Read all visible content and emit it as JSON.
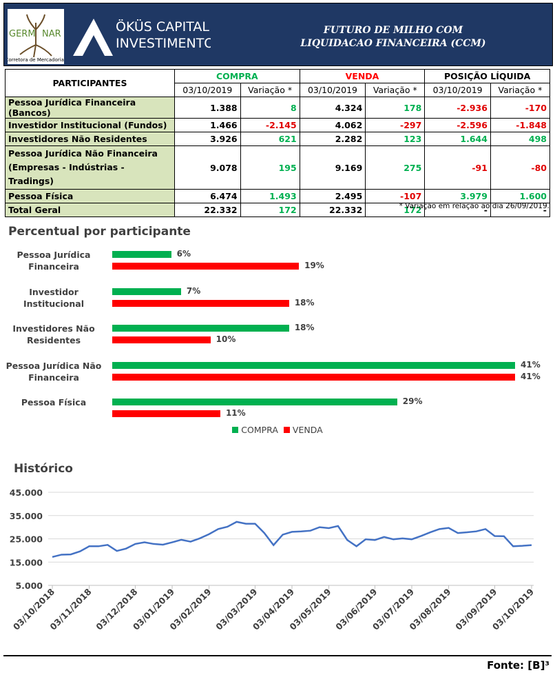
{
  "header": {
    "logo": {
      "left": "GERM",
      "right": "NAR",
      "caption": "Corretora de Mercadorias"
    },
    "brand": [
      "ÖKÜS CAPITAL",
      "INVESTIMENTOS"
    ],
    "title": [
      "FUTURO DE MILHO COM",
      "LIQUIDACAO FINANCEIRA (CCM)"
    ]
  },
  "table": {
    "participants_header": "PARTICIPANTES",
    "groups": [
      "COMPRA",
      "VENDA",
      "POSIÇÃO LÍQUIDA"
    ],
    "subheaders": [
      "03/10/2019",
      "Variação *",
      "03/10/2019",
      "Variação *",
      "03/10/2019",
      "Variação *"
    ],
    "rows": [
      [
        "Pessoa Jurídica Financeira (Bancos)",
        "1.388",
        "8",
        "4.324",
        "178",
        "-2.936",
        "-170"
      ],
      [
        "Investidor Institucional (Fundos)",
        "1.466",
        "-2.145",
        "4.062",
        "-297",
        "-2.596",
        "-1.848"
      ],
      [
        "Investidores Não Residentes",
        "3.926",
        "621",
        "2.282",
        "123",
        "1.644",
        "498"
      ],
      [
        "Pessoa Jurídica Não Financeira (Empresas - Indústrias - Tradings)",
        "9.078",
        "195",
        "9.169",
        "275",
        "-91",
        "-80"
      ],
      [
        "Pessoa Física",
        "6.474",
        "1.493",
        "2.495",
        "-107",
        "3.979",
        "1.600"
      ],
      [
        "Total Geral",
        "22.332",
        "172",
        "22.332",
        "172",
        "-",
        "-"
      ]
    ]
  },
  "note": "* Variação em relação ao dia 26/09/2019.",
  "chart_data": [
    {
      "type": "hbar",
      "title": "Percentual por participante",
      "categories": [
        "Pessoa Jurídica Financeira",
        "Investidor Institucional",
        "Investidores Não Residentes",
        "Pessoa Jurídica Não Financeira",
        "Pessoa Física"
      ],
      "series": [
        {
          "name": "COMPRA",
          "color": "#00b050",
          "values": [
            6,
            7,
            18,
            41,
            29
          ],
          "value_labels": [
            "6%",
            "7%",
            "18%",
            "41%",
            "29%"
          ]
        },
        {
          "name": "VENDA",
          "color": "#ff0000",
          "values": [
            19,
            18,
            10,
            41,
            11
          ],
          "value_labels": [
            "19%",
            "18%",
            "10%",
            "41%",
            "11%"
          ]
        }
      ],
      "legend": "bottom"
    },
    {
      "type": "line",
      "title": "Histórico",
      "categories": [
        "03/10/2018",
        null,
        null,
        null,
        "03/11/2018",
        null,
        null,
        null,
        null,
        "03/12/2018",
        null,
        null,
        null,
        "03/01/2019",
        null,
        null,
        null,
        "03/02/2019",
        null,
        null,
        null,
        null,
        "03/03/2019",
        null,
        null,
        null,
        "03/04/2019",
        null,
        null,
        null,
        "03/05/2019",
        null,
        null,
        null,
        null,
        "03/06/2019",
        null,
        null,
        null,
        "03/07/2019",
        null,
        null,
        null,
        "03/08/2019",
        null,
        null,
        null,
        null,
        "03/09/2019",
        null,
        null,
        null,
        "03/10/2019"
      ],
      "series": [
        {
          "color": "#4472c4",
          "values": [
            17200,
            18200,
            18300,
            19600,
            21800,
            21800,
            22400,
            19800,
            20800,
            22800,
            23500,
            22800,
            22500,
            23500,
            24600,
            23800,
            25200,
            27000,
            29200,
            30200,
            32300,
            31500,
            31500,
            27500,
            22300,
            26800,
            28000,
            28200,
            28500,
            30000,
            29600,
            30500,
            24500,
            21800,
            24800,
            24500,
            25800,
            24800,
            25200,
            24800,
            26200,
            27800,
            29200,
            29700,
            27500,
            27800,
            28200,
            29200,
            26200,
            26100,
            21800,
            22000,
            22300
          ]
        }
      ],
      "ylim": [
        5000,
        45000
      ],
      "yticks": [
        {
          "value": 5000,
          "label": "5.000"
        },
        {
          "value": 15000,
          "label": "15.000"
        },
        {
          "value": 25000,
          "label": "25.000"
        },
        {
          "value": 35000,
          "label": "35.000"
        },
        {
          "value": 45000,
          "label": "45.000"
        }
      ],
      "grid": true
    }
  ],
  "footer": {
    "source": "Fonte: [B]³"
  }
}
